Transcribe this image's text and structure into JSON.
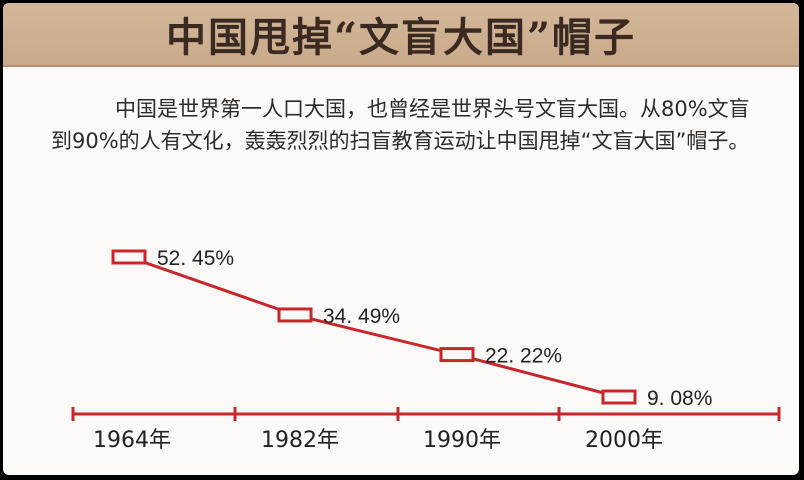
{
  "title": "中国甩掉“文盲大国”帽子",
  "paragraph": "中国是世界第一人口大国，也曾经是世界头号文盲大国。从80%文盲到90%的人有文化，轰轰烈烈的扫盲教育运动让中国甩掉“文盲大国”帽子。",
  "colors": {
    "accent": "#c9262b",
    "title_bg": "#cfb091"
  },
  "chart_data": {
    "type": "line",
    "categories": [
      "1964年",
      "1982年",
      "1990年",
      "2000年"
    ],
    "values": [
      52.45,
      34.49,
      22.22,
      9.08
    ],
    "value_labels": [
      "52. 45%",
      "34. 49%",
      "22. 22%",
      "9. 08%"
    ],
    "xlabel": "",
    "ylabel": "",
    "legend": "none",
    "grid": false
  }
}
